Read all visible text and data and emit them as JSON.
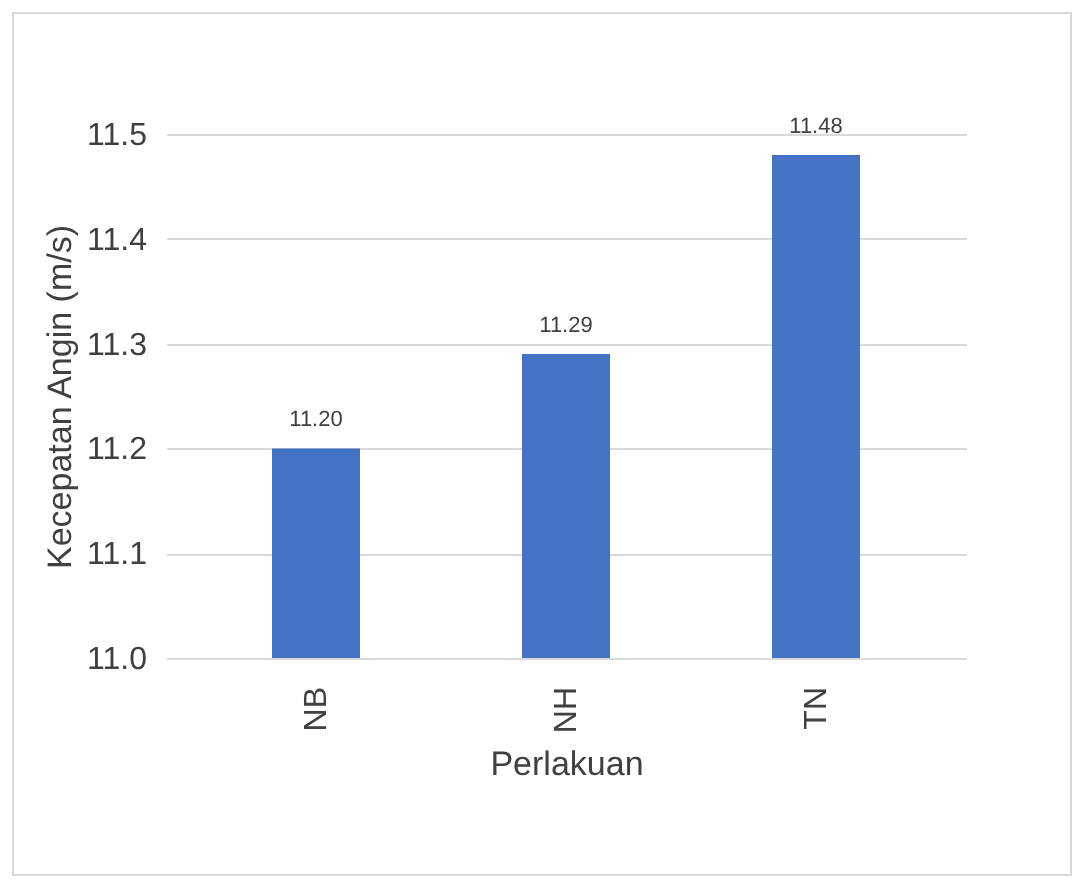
{
  "chart_data": {
    "type": "bar",
    "xlabel": "Perlakuan",
    "ylabel": "Kecepatan Angin (m/s)",
    "categories": [
      "NB",
      "NH",
      "TN"
    ],
    "values": [
      11.2,
      11.29,
      11.48
    ],
    "value_labels": [
      "11.20",
      "11.29",
      "11.48"
    ],
    "color": "#4472c4",
    "ylim": [
      11.0,
      11.5
    ],
    "yticks": [
      {
        "value": 11.0,
        "label": "11.0"
      },
      11.1,
      11.2,
      11.3,
      11.4,
      11.5
    ],
    "grid": "y"
  }
}
